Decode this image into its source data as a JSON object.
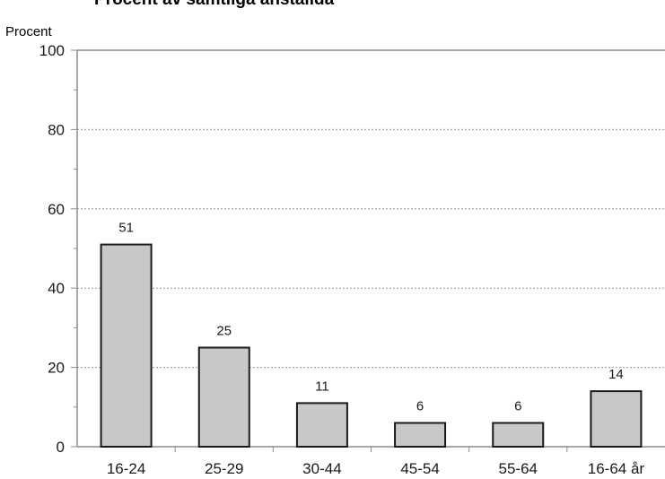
{
  "chart_data": {
    "type": "bar",
    "title": "Procent av samtliga anställda",
    "ylabel": "Procent",
    "xlabel": "",
    "categories": [
      "16-24",
      "25-29",
      "30-44",
      "45-54",
      "55-64",
      "16-64 år"
    ],
    "values": [
      51,
      25,
      11,
      6,
      6,
      14
    ],
    "data_labels": [
      "51",
      "25",
      "11",
      "6",
      "6",
      "14"
    ],
    "ylim": [
      0,
      100
    ],
    "yticks": [
      0,
      20,
      40,
      60,
      80,
      100
    ],
    "ytick_labels": [
      "0",
      "20",
      "40",
      "60",
      "80",
      "100"
    ],
    "grid": true,
    "legend": "none",
    "colors": {
      "bar_fill": "#c8c8c8",
      "bar_stroke": "#1a1a1a",
      "grid": "#9a9a9a",
      "axis": "#8c8c8c",
      "text": "#1a1a1a"
    }
  }
}
